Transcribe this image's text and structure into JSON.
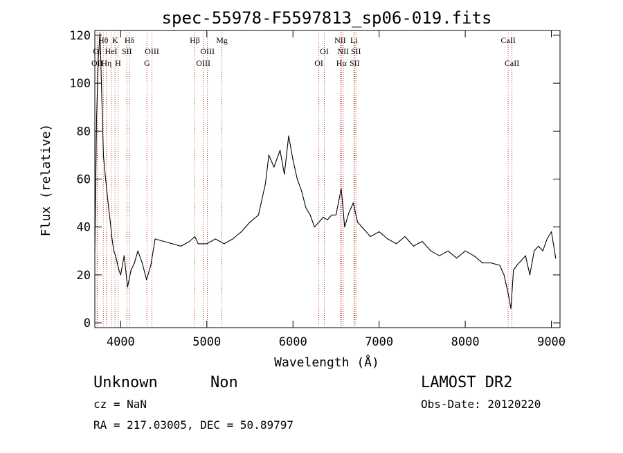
{
  "chart_data": {
    "type": "line",
    "title": "spec-55978-F5597813_sp06-019.fits",
    "xlabel": "Wavelength (Å)",
    "ylabel": "Flux (relative)",
    "xlim": [
      3700,
      9100
    ],
    "ylim": [
      -2,
      122
    ],
    "x_ticks": [
      4000,
      5000,
      6000,
      7000,
      8000,
      9000
    ],
    "y_ticks": [
      0,
      20,
      40,
      60,
      80,
      100,
      120
    ],
    "grid": false,
    "series": [
      {
        "color": "#000000",
        "x": [
          3700,
          3720,
          3740,
          3760,
          3780,
          3800,
          3820,
          3840,
          3860,
          3880,
          3900,
          3920,
          3940,
          3960,
          3980,
          4000,
          4040,
          4080,
          4120,
          4160,
          4200,
          4250,
          4300,
          4350,
          4400,
          4500,
          4600,
          4700,
          4800,
          4860,
          4900,
          5000,
          5100,
          5200,
          5300,
          5400,
          5500,
          5600,
          5680,
          5720,
          5780,
          5850,
          5900,
          5950,
          6000,
          6050,
          6100,
          6150,
          6200,
          6250,
          6300,
          6350,
          6400,
          6450,
          6500,
          6560,
          6600,
          6650,
          6700,
          6750,
          6800,
          6900,
          7000,
          7100,
          7200,
          7300,
          7400,
          7500,
          7600,
          7700,
          7800,
          7900,
          8000,
          8100,
          8200,
          8300,
          8400,
          8450,
          8500,
          8530,
          8560,
          8600,
          8700,
          8750,
          8800,
          8850,
          8900,
          8950,
          9000,
          9050
        ],
        "y": [
          30,
          85,
          110,
          121,
          95,
          70,
          62,
          55,
          48,
          42,
          35,
          30,
          28,
          25,
          22,
          20,
          28,
          15,
          22,
          25,
          30,
          25,
          18,
          24,
          35,
          34,
          33,
          32,
          34,
          36,
          33,
          33,
          35,
          33,
          35,
          38,
          42,
          45,
          58,
          70,
          65,
          72,
          62,
          78,
          68,
          60,
          55,
          48,
          45,
          40,
          42,
          44,
          43,
          45,
          45,
          56,
          40,
          46,
          50,
          42,
          40,
          36,
          38,
          35,
          33,
          36,
          32,
          34,
          30,
          28,
          30,
          27,
          30,
          28,
          25,
          25,
          24,
          20,
          12,
          6,
          22,
          24,
          28,
          20,
          30,
          32,
          30,
          35,
          38,
          27
        ]
      }
    ],
    "line_markers": [
      {
        "label": "OII",
        "x": 3727,
        "row": 3
      },
      {
        "label": "OI",
        "x": 3730,
        "row": 2
      },
      {
        "label": "Hθ",
        "x": 3798,
        "row": 1
      },
      {
        "label": "Hη",
        "x": 3835,
        "row": 3
      },
      {
        "label": "HeI",
        "x": 3889,
        "row": 2
      },
      {
        "label": "K",
        "x": 3934,
        "row": 1
      },
      {
        "label": "H",
        "x": 3969,
        "row": 3
      },
      {
        "label": "SII",
        "x": 4072,
        "row": 2
      },
      {
        "label": "Hδ",
        "x": 4102,
        "row": 1
      },
      {
        "label": "G",
        "x": 4305,
        "row": 3
      },
      {
        "label": "OIII",
        "x": 4363,
        "row": 2
      },
      {
        "label": "Hβ",
        "x": 4861,
        "row": 1
      },
      {
        "label": "OIII",
        "x": 4959,
        "row": 3
      },
      {
        "label": "OIII",
        "x": 5007,
        "row": 2
      },
      {
        "label": "Mg",
        "x": 5175,
        "row": 1
      },
      {
        "label": "OI",
        "x": 6300,
        "row": 3
      },
      {
        "label": "OI",
        "x": 6364,
        "row": 2
      },
      {
        "label": "NII",
        "x": 6548,
        "row": 1
      },
      {
        "label": "NII",
        "x": 6583,
        "row": 2
      },
      {
        "label": "Hα",
        "x": 6563,
        "row": 3
      },
      {
        "label": "Li",
        "x": 6708,
        "row": 1
      },
      {
        "label": "SII",
        "x": 6716,
        "row": 3
      },
      {
        "label": "SII",
        "x": 6731,
        "row": 2
      },
      {
        "label": "CaII",
        "x": 8498,
        "row": 1
      },
      {
        "label": "CaII",
        "x": 8542,
        "row": 3
      }
    ]
  },
  "footer": {
    "object_class": "Unknown",
    "subclass": "Non",
    "survey": "LAMOST DR2",
    "cz": "cz = NaN",
    "obs_date": "Obs-Date: 20120220",
    "coords": "RA = 217.03005, DEC =  50.89797"
  }
}
